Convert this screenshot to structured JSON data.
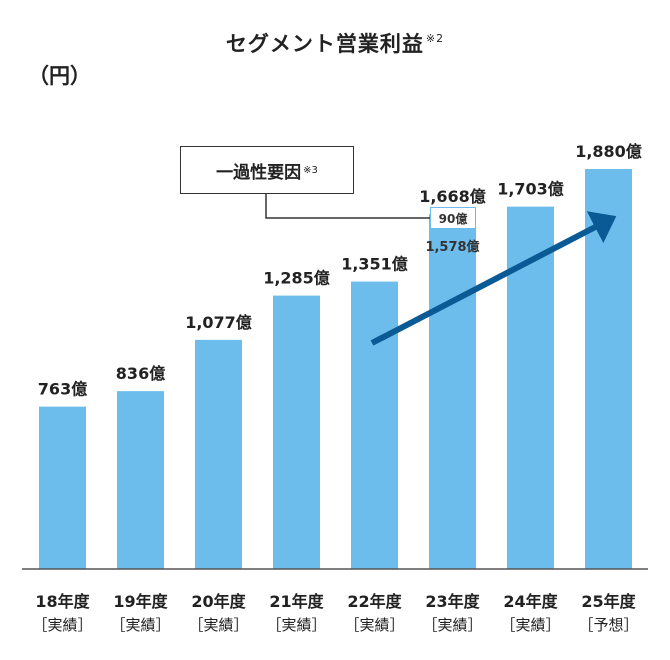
{
  "title": "セグメント営業利益",
  "title_note": "※2",
  "unit": "（円）",
  "callout": {
    "text": "一過性要因",
    "note": "※3"
  },
  "colors": {
    "bar": "#6dbdec",
    "arrow": "#0a5a96",
    "text": "#222222"
  },
  "chart_data": {
    "type": "bar",
    "title": "セグメント営業利益",
    "ylabel": "（円）",
    "ylim": [
      0,
      2000
    ],
    "grid": false,
    "categories": [
      "18年度",
      "19年度",
      "20年度",
      "21年度",
      "22年度",
      "23年度",
      "24年度",
      "25年度"
    ],
    "sublabels": [
      "［実績］",
      "［実績］",
      "［実績］",
      "［実績］",
      "［実績］",
      "［実績］",
      "［実績］",
      "［予想］"
    ],
    "values": [
      763,
      836,
      1077,
      1285,
      1351,
      1668,
      1703,
      1880
    ],
    "value_labels": [
      "763億",
      "836億",
      "1,077億",
      "1,285億",
      "1,351億",
      "1,668億",
      "1,703億",
      "1,880億"
    ],
    "annotations": {
      "breakdown": {
        "category": "23年度",
        "delta_label": "90億",
        "base_label": "1,578億"
      },
      "trend_arrow": "upward"
    }
  }
}
